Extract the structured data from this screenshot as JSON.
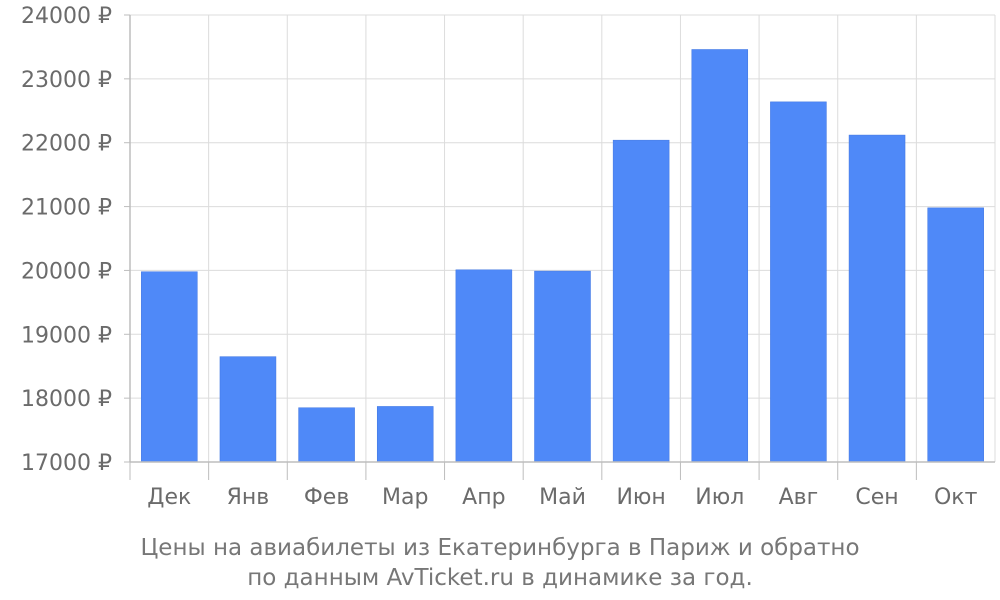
{
  "chart_data": {
    "type": "bar",
    "categories": [
      "Дек",
      "Янв",
      "Фев",
      "Мар",
      "Апр",
      "Май",
      "Июн",
      "Июл",
      "Авг",
      "Сен",
      "Окт"
    ],
    "values": [
      19980,
      18650,
      17850,
      17870,
      20010,
      19990,
      22040,
      23460,
      22640,
      22120,
      20980
    ],
    "y_ticks": [
      "17000 ₽",
      "18000 ₽",
      "19000 ₽",
      "20000 ₽",
      "21000 ₽",
      "22000 ₽",
      "23000 ₽",
      "24000 ₽"
    ],
    "ylim": [
      17000,
      24000
    ],
    "grid": true,
    "bar_color": "#4f89f8",
    "caption_lines": [
      "Цены на авиабилеты из Екатеринбурга в Париж и обратно",
      "по данным AvTicket.ru в динамике за год."
    ]
  }
}
